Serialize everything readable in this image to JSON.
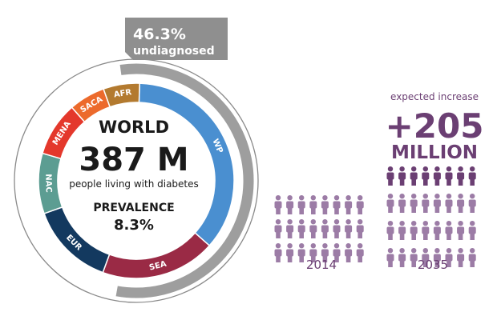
{
  "colors": {
    "purple": "#6b3f73",
    "light_purple": "#9c7ca6",
    "gray_arc": "#9e9e9e",
    "callout_bg": "#8f8f8f",
    "text_dark": "#1a1a1a",
    "ring_outline": "#8a8a8a"
  },
  "callout": {
    "percent": "46.3%",
    "label": "undiagnosed"
  },
  "center": {
    "world": "WORLD",
    "total": "387 M",
    "caption": "people living with diabetes",
    "prevalence_label": "PREVALENCE",
    "prevalence_value": "8.3%"
  },
  "increase": {
    "label": "expected increase",
    "amount": "+205",
    "unit": "MILLION"
  },
  "years": {
    "left": "2014",
    "right": "2035"
  },
  "chart_data": [
    {
      "type": "donut",
      "title": "WORLD 387 M people living with diabetes",
      "unit": "share of ring (approx.)",
      "segments": [
        {
          "label": "WP",
          "value": 36,
          "color": "#4a8fd0"
        },
        {
          "label": "SEA",
          "value": 19,
          "color": "#9a2a45"
        },
        {
          "label": "EUR",
          "value": 14,
          "color": "#13395f"
        },
        {
          "label": "NAC",
          "value": 10,
          "color": "#5c9d92"
        },
        {
          "label": "MENA",
          "value": 9,
          "color": "#e4382c"
        },
        {
          "label": "SACA",
          "value": 6,
          "color": "#ec6a2c"
        },
        {
          "label": "AFR",
          "value": 6,
          "color": "#b37a2f"
        }
      ],
      "undiagnosed_share": 46.3
    },
    {
      "type": "pictogram",
      "categories": [
        "2014",
        "2035"
      ],
      "units_per_column": [
        [
          8,
          3
        ],
        [
          8,
          4
        ]
      ],
      "increase_millions": 205
    }
  ]
}
